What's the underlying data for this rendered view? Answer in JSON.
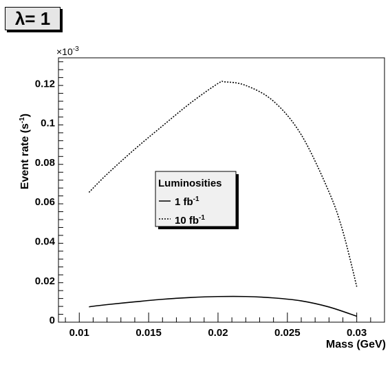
{
  "badge": {
    "symbol": "λ",
    "text": "= 1"
  },
  "chart_data": {
    "type": "line",
    "title": "",
    "xlabel": "Mass (GeV)",
    "ylabel": "Event rate (s",
    "ylabel_sup": "-1",
    "ylabel_suffix": ")",
    "y_multiplier": "×10",
    "y_multiplier_exp": "-3",
    "xlim": [
      0.0085,
      0.032
    ],
    "ylim": [
      -0.001,
      0.133
    ],
    "xticks": [
      0.01,
      0.015,
      0.02,
      0.025,
      0.03
    ],
    "xtick_labels": [
      "0.01",
      "0.015",
      "0.02",
      "0.025",
      "0.03"
    ],
    "yticks": [
      0,
      0.02,
      0.04,
      0.06,
      0.08,
      0.1,
      0.12
    ],
    "ytick_labels": [
      "0",
      "0.02",
      "0.04",
      "0.06",
      "0.08",
      "0.1",
      "0.12"
    ],
    "legend": {
      "title": "Luminosities",
      "placement": "center"
    },
    "series": [
      {
        "name": "1 fb",
        "name_sup": "-1",
        "style": "solid",
        "x": [
          0.0107,
          0.012,
          0.014,
          0.016,
          0.018,
          0.02,
          0.022,
          0.024,
          0.026,
          0.028,
          0.03
        ],
        "y": [
          0.0068,
          0.0079,
          0.0093,
          0.0106,
          0.0115,
          0.012,
          0.012,
          0.0113,
          0.0098,
          0.0067,
          0.002
        ]
      },
      {
        "name": "10 fb",
        "name_sup": "-1",
        "style": "dotted",
        "x": [
          0.0107,
          0.012,
          0.014,
          0.016,
          0.018,
          0.02,
          0.0205,
          0.022,
          0.024,
          0.026,
          0.028,
          0.029,
          0.03
        ],
        "y": [
          0.0648,
          0.074,
          0.0867,
          0.0985,
          0.11,
          0.12,
          0.1208,
          0.119,
          0.111,
          0.094,
          0.065,
          0.045,
          0.017
        ]
      }
    ]
  }
}
